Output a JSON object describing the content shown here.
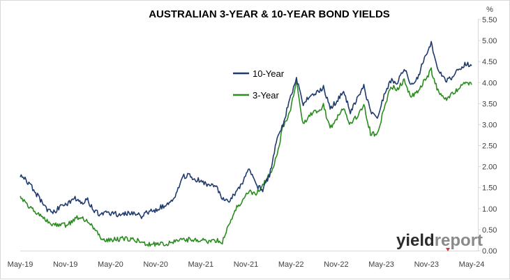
{
  "chart_data": {
    "type": "line",
    "title": "AUSTRALIAN 3-YEAR & 10-YEAR BOND YIELDS",
    "ylabel": "%",
    "xlabel": "",
    "ylim": [
      0,
      5.5
    ],
    "yticks": [
      "0.00",
      "0.50",
      "1.00",
      "1.50",
      "2.00",
      "2.50",
      "3.00",
      "3.50",
      "4.00",
      "4.50",
      "5.00",
      "5.50"
    ],
    "xticks": [
      "May-19",
      "Nov-19",
      "May-20",
      "Nov-20",
      "May-21",
      "Nov-21",
      "May-22",
      "Nov-22",
      "May-23",
      "Nov-23",
      "May-24"
    ],
    "legend_position": "center-top",
    "grid": false,
    "series": [
      {
        "name": "10-Year",
        "color": "#1f3a6e",
        "values": [
          1.8,
          1.65,
          1.45,
          1.2,
          0.95,
          0.92,
          1.05,
          1.1,
          1.25,
          1.15,
          1.2,
          0.95,
          0.85,
          0.9,
          0.88,
          0.85,
          0.9,
          0.87,
          0.82,
          0.92,
          0.95,
          1.05,
          1.1,
          1.25,
          1.75,
          1.8,
          1.7,
          1.65,
          1.55,
          1.55,
          1.25,
          1.2,
          1.4,
          1.6,
          1.95,
          1.55,
          1.45,
          1.8,
          2.6,
          3.0,
          3.6,
          4.1,
          3.45,
          3.7,
          3.75,
          3.9,
          3.4,
          3.55,
          3.8,
          3.3,
          3.6,
          3.9,
          3.3,
          3.15,
          3.7,
          4.05,
          4.0,
          4.35,
          3.95,
          4.1,
          4.6,
          4.95,
          4.35,
          4.05,
          4.1,
          4.3,
          4.45,
          4.4
        ]
      },
      {
        "name": "3-Year",
        "color": "#2a8c1e",
        "values": [
          1.25,
          1.1,
          0.95,
          0.85,
          0.7,
          0.6,
          0.65,
          0.6,
          0.75,
          0.8,
          0.7,
          0.55,
          0.25,
          0.26,
          0.27,
          0.28,
          0.28,
          0.27,
          0.2,
          0.16,
          0.16,
          0.18,
          0.17,
          0.25,
          0.26,
          0.26,
          0.24,
          0.25,
          0.2,
          0.24,
          0.22,
          0.65,
          1.0,
          1.2,
          1.4,
          1.35,
          1.55,
          1.8,
          2.2,
          2.95,
          3.3,
          4.0,
          3.0,
          3.25,
          3.3,
          3.45,
          2.9,
          3.15,
          3.4,
          3.0,
          3.2,
          3.45,
          2.8,
          2.75,
          3.4,
          3.9,
          3.85,
          4.05,
          3.65,
          3.8,
          4.05,
          4.3,
          3.8,
          3.6,
          3.7,
          3.85,
          4.0,
          3.95
        ]
      }
    ]
  },
  "watermark": {
    "part1": "yield",
    "part2": "report"
  }
}
